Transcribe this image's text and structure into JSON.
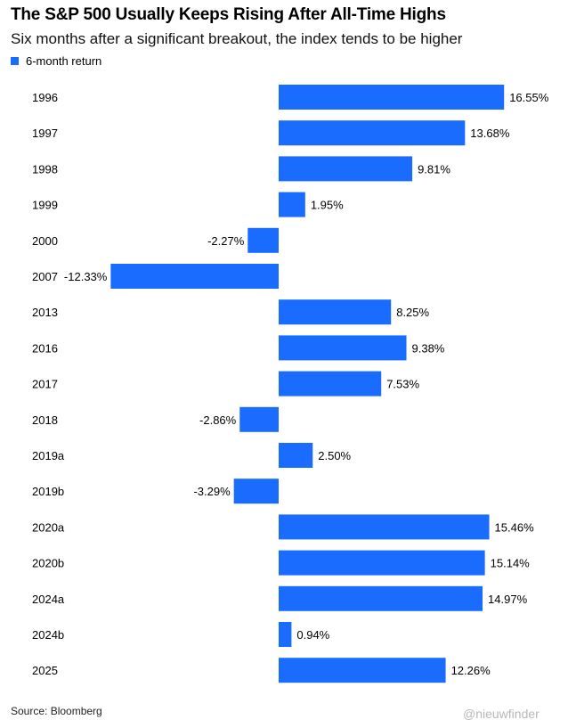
{
  "title": "The S&P 500 Usually Keeps Rising After All-Time Highs",
  "subtitle": "Six months after a significant breakout, the index tends to be higher",
  "source": "Source: Bloomberg",
  "watermark": "@nieuwfinder",
  "colors": {
    "bar": "#1a6cff",
    "text": "#000000"
  },
  "chart_data": {
    "type": "bar",
    "orientation": "horizontal",
    "title": "The S&P 500 Usually Keeps Rising After All-Time Highs",
    "subtitle": "Six months after a significant breakout, the index tends to be higher",
    "legend": {
      "position": "top-left"
    },
    "categories": [
      "1996",
      "1997",
      "1998",
      "1999",
      "2000",
      "2007",
      "2013",
      "2016",
      "2017",
      "2018",
      "2019a",
      "2019b",
      "2020a",
      "2020b",
      "2024a",
      "2024b",
      "2025"
    ],
    "series": [
      {
        "name": "6-month return",
        "values": [
          16.55,
          13.68,
          9.81,
          1.95,
          -2.27,
          -12.33,
          8.25,
          9.38,
          7.53,
          -2.86,
          2.5,
          -3.29,
          15.46,
          15.14,
          14.97,
          0.94,
          12.26
        ],
        "labels": [
          "16.55%",
          "13.68%",
          "9.81%",
          "1.95%",
          "-2.27%",
          "-12.33%",
          "8.25%",
          "9.38%",
          "7.53%",
          "-2.86%",
          "2.50%",
          "-3.29%",
          "15.46%",
          "15.14%",
          "14.97%",
          "0.94%",
          "12.26%"
        ]
      }
    ],
    "grid": false
  }
}
